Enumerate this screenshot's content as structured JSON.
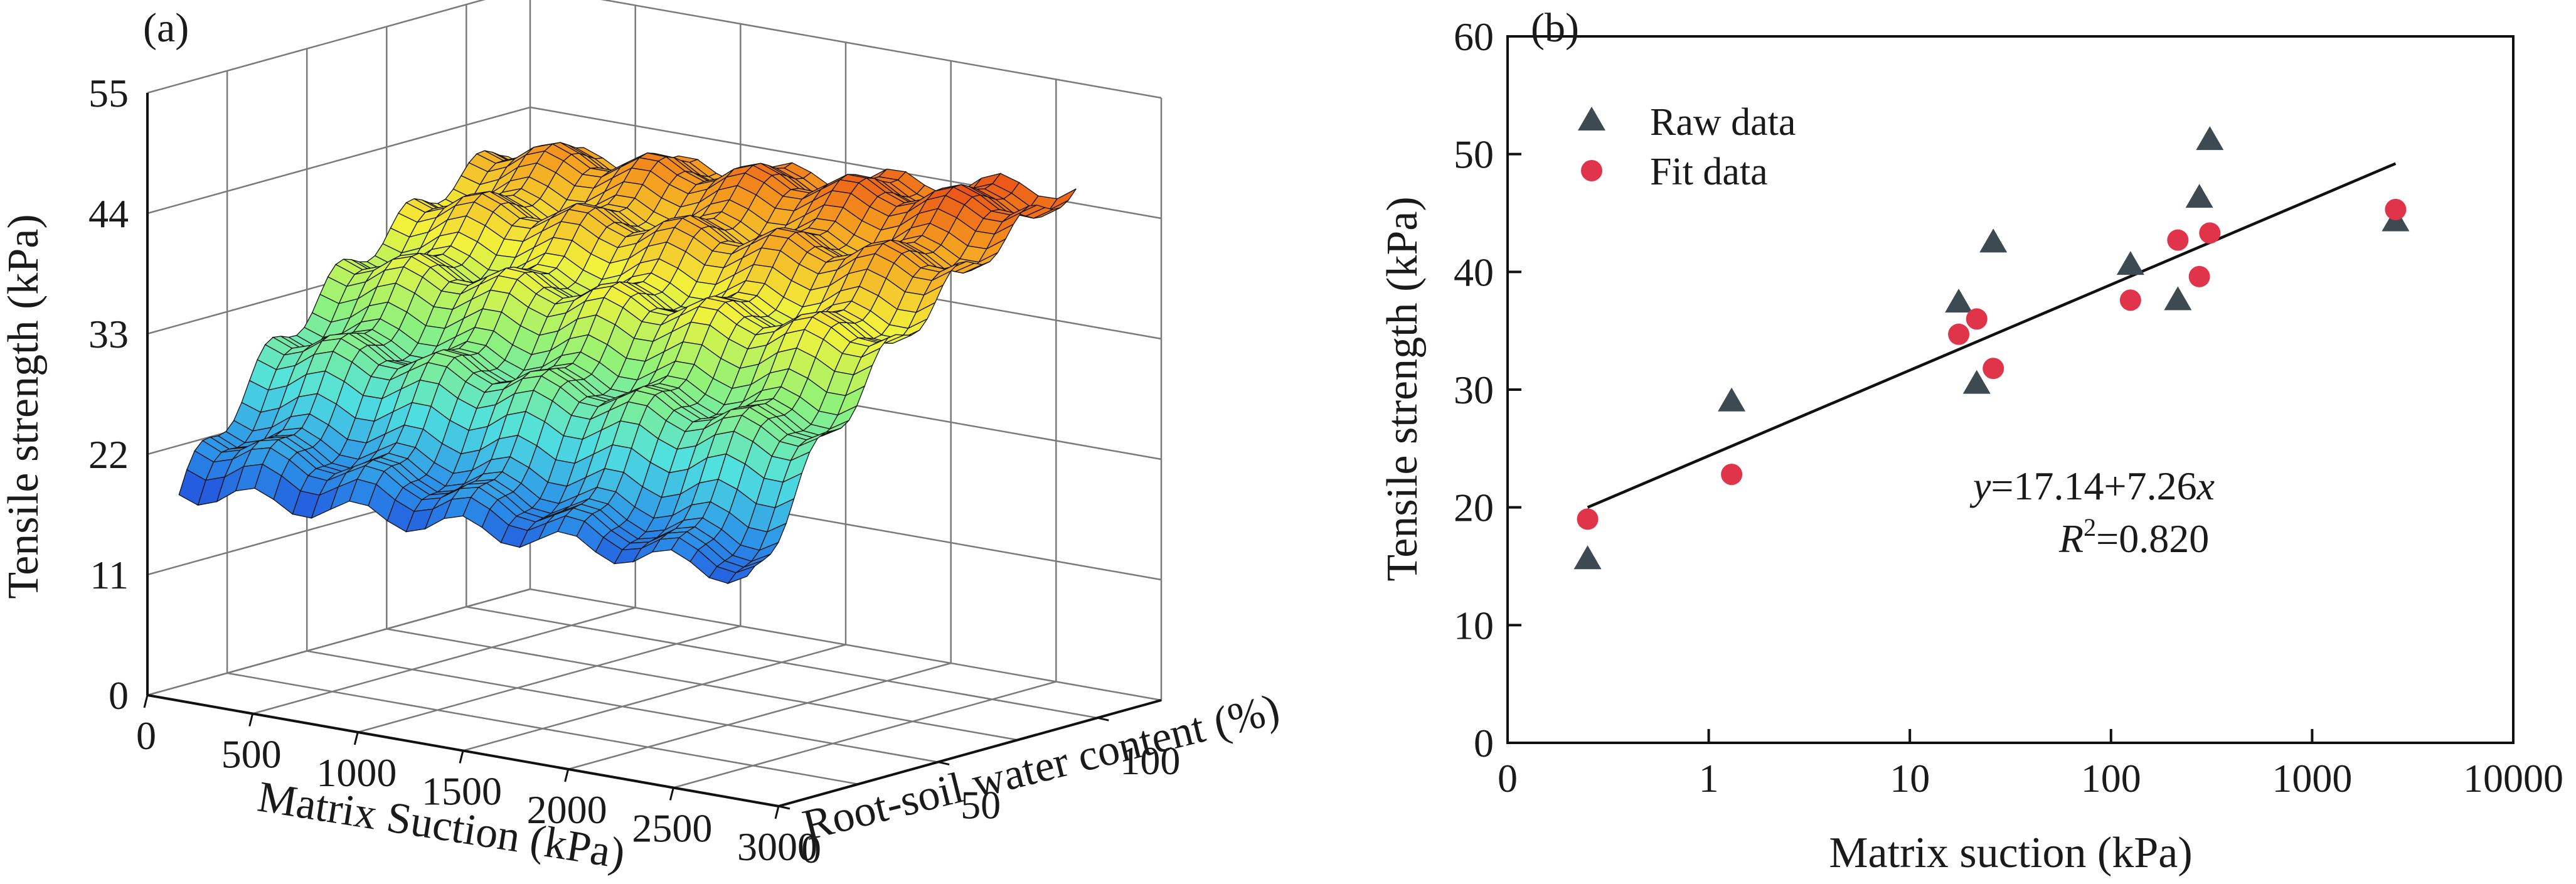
{
  "panel_a": {
    "label": "(a)"
  },
  "panel_b": {
    "label": "(b)"
  },
  "chart_data": [
    {
      "type": "surface",
      "zlabel": "Tensile strength (kPa)",
      "xlabel": "Matrix Suction (kPa)",
      "ylabel": "Root-soil water content (%)",
      "x_ticks": [
        "0",
        "500",
        "1000",
        "1500",
        "2000",
        "2500",
        "3000"
      ],
      "y_ticks": [
        "100",
        "50",
        "0"
      ],
      "z_ticks": [
        "0",
        "11",
        "22",
        "33",
        "44",
        "55"
      ],
      "xlim": [
        0,
        3000
      ],
      "ylim": [
        0,
        120
      ],
      "zlim": [
        0,
        55
      ],
      "colormap": [
        "#1d2fd6",
        "#2b8fe8",
        "#4fe0e0",
        "#8ff27a",
        "#f2f23a",
        "#f5a020",
        "#e83a14",
        "#7a0d06"
      ]
    },
    {
      "type": "scatter",
      "xscale": "log",
      "xlim": [
        0.1,
        10000
      ],
      "ylim": [
        0,
        60
      ],
      "x_ticks": [
        "0",
        "1",
        "10",
        "100",
        "1000",
        "10000"
      ],
      "y_ticks": [
        "0",
        "10",
        "20",
        "30",
        "40",
        "50",
        "60"
      ],
      "xlabel": "Matrix suction (kPa)",
      "ylabel": "Tensile strength (kPa)",
      "legend_position": "top-left",
      "series": [
        {
          "name": "Raw data",
          "marker": "triangle",
          "color": "#3e4a52",
          "points": [
            [
              0.25,
              15.6
            ],
            [
              1.3,
              29.0
            ],
            [
              17.5,
              37.4
            ],
            [
              21.5,
              30.5
            ],
            [
              26,
              42.5
            ],
            [
              125,
              40.6
            ],
            [
              215,
              37.6
            ],
            [
              275,
              46.3
            ],
            [
              310,
              51.2
            ],
            [
              2600,
              44.3
            ]
          ]
        },
        {
          "name": "Fit data",
          "marker": "circle",
          "color": "#e0344a",
          "points": [
            [
              0.25,
              19.0
            ],
            [
              1.3,
              22.8
            ],
            [
              17.5,
              34.7
            ],
            [
              21.5,
              36.0
            ],
            [
              26,
              31.8
            ],
            [
              125,
              37.6
            ],
            [
              215,
              42.7
            ],
            [
              275,
              39.6
            ],
            [
              310,
              43.3
            ],
            [
              2600,
              45.3
            ]
          ]
        }
      ],
      "fit_line": {
        "color": "#111111",
        "x": [
          0.25,
          2600
        ],
        "y": [
          20.0,
          49.2
        ]
      },
      "equation": {
        "y_italic": "y",
        "y_rest": "=17.14+7.26",
        "x_italic": "x",
        "r_italic": "R",
        "r_sup": "2",
        "r_rest": "=0.820"
      }
    }
  ]
}
